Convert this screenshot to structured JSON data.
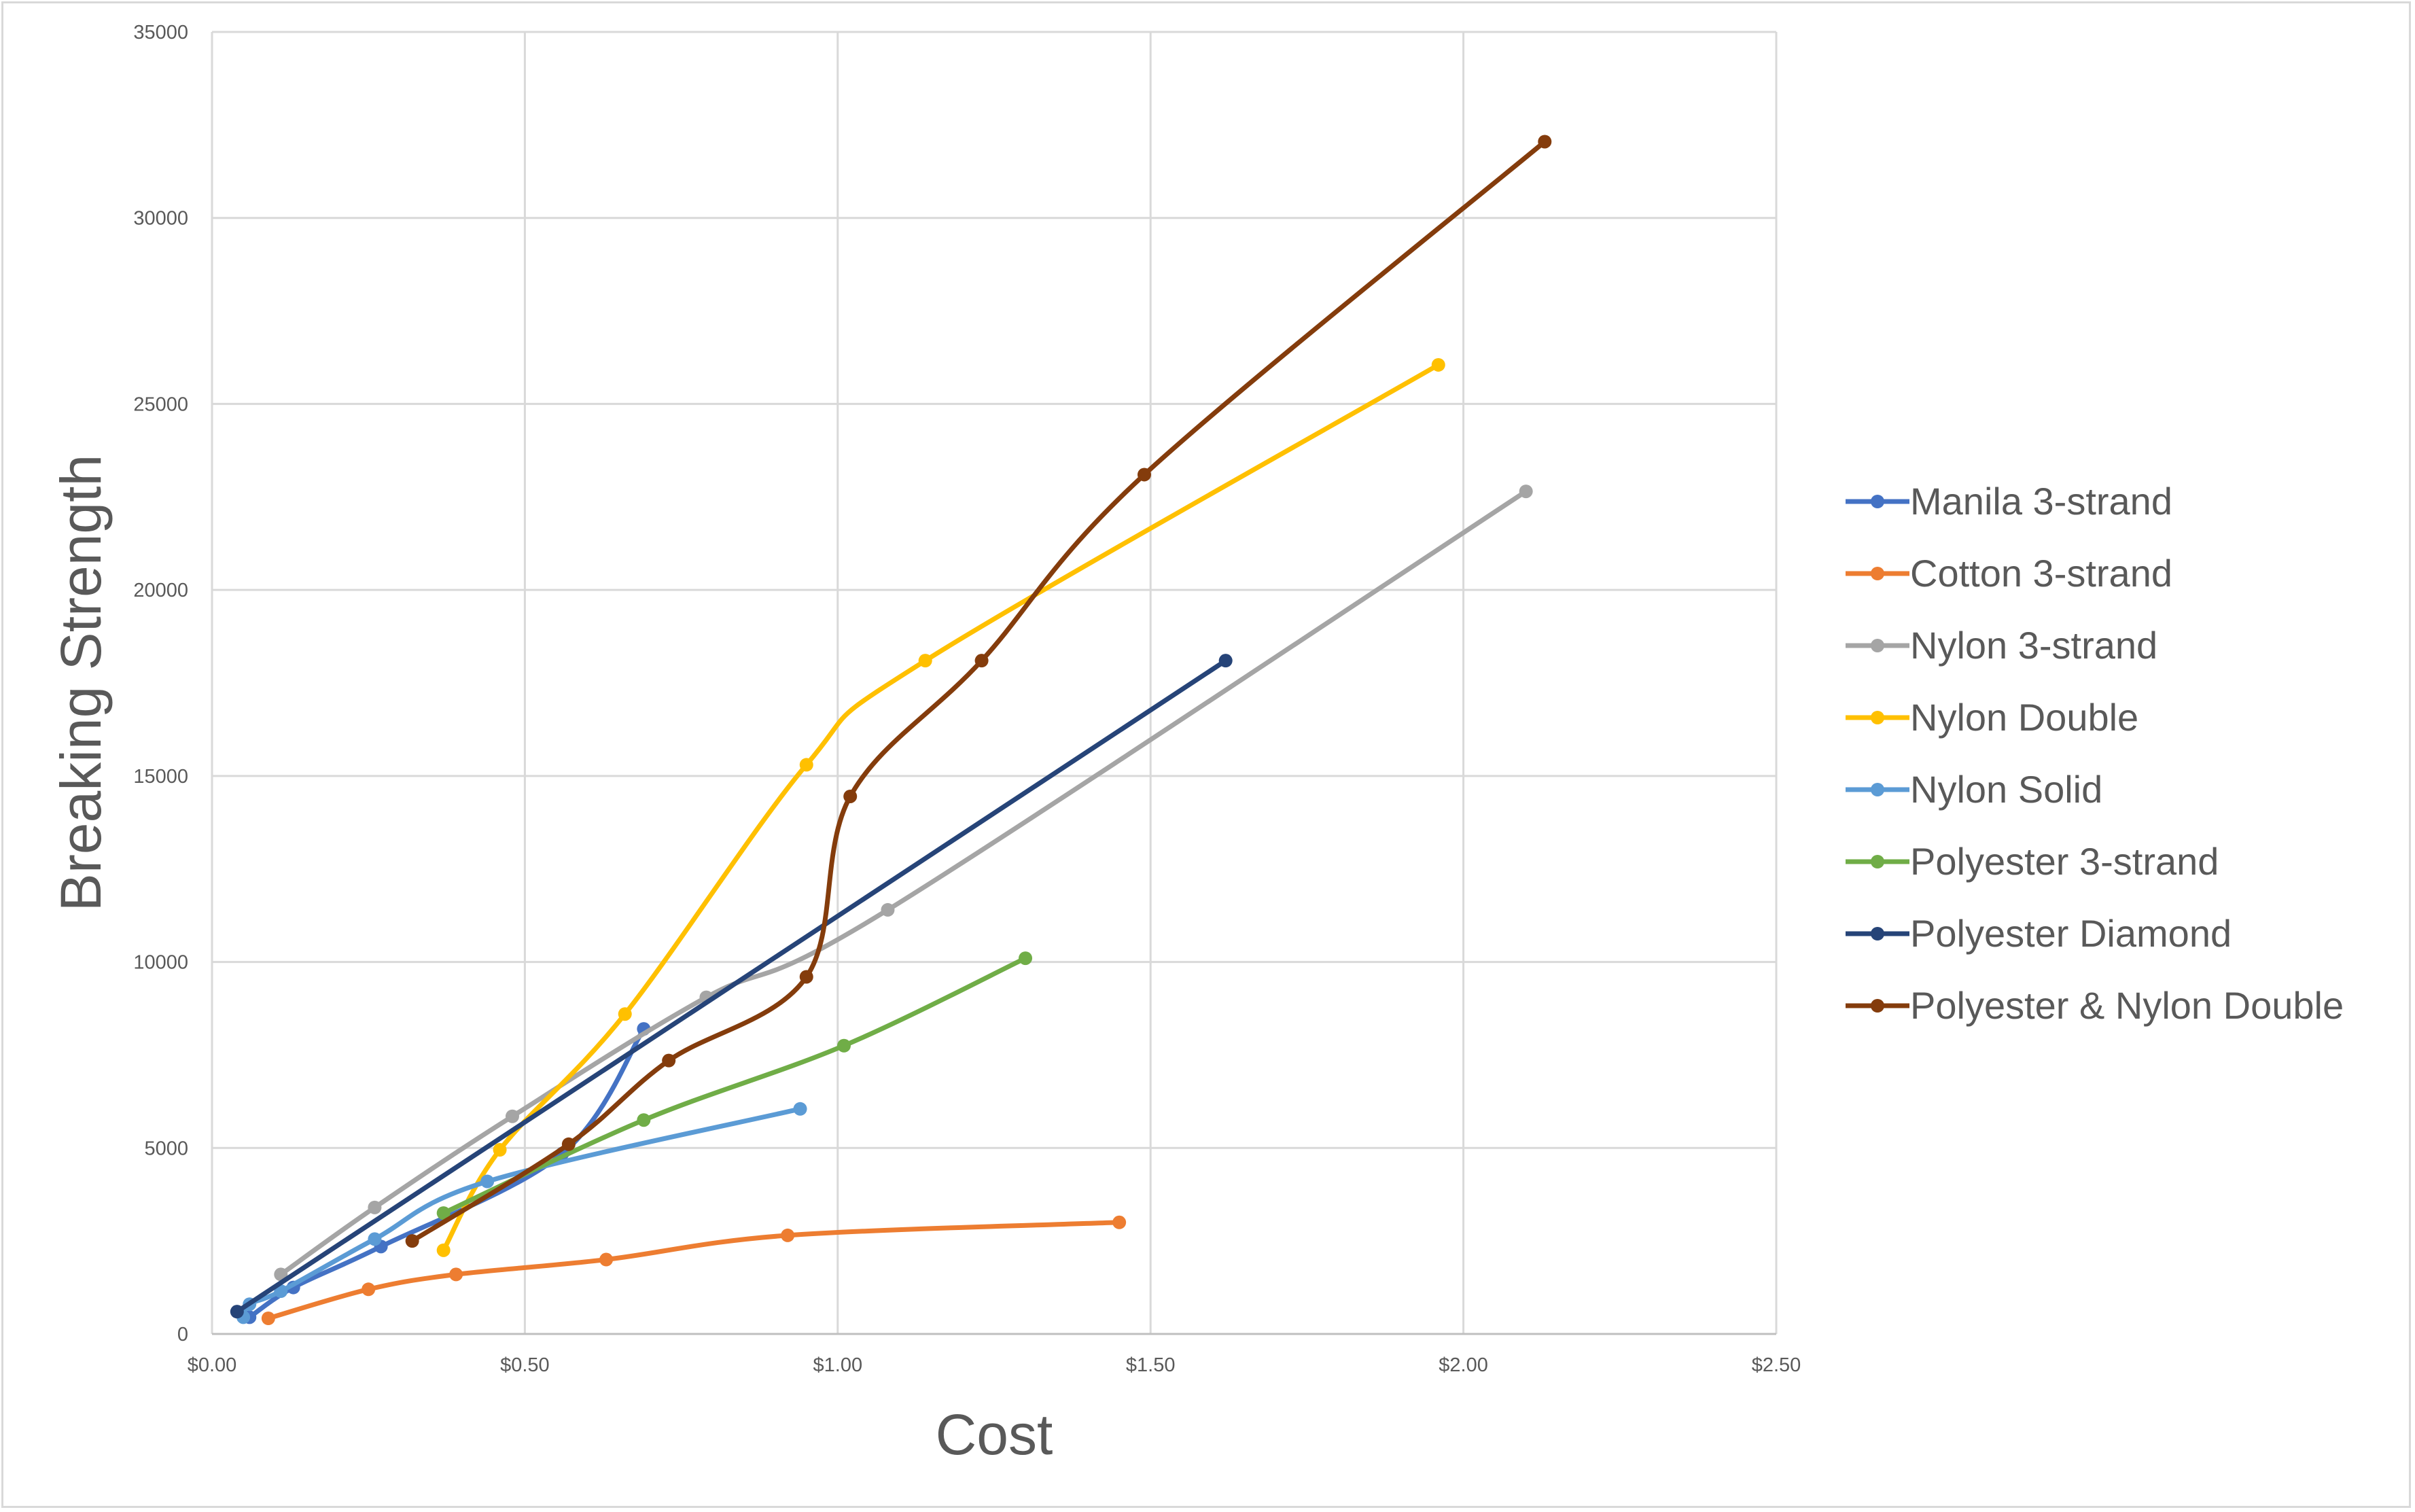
{
  "chart_data": {
    "type": "line",
    "title": "",
    "xlabel": "Cost",
    "ylabel": "Breaking Strength",
    "xlim": [
      0,
      2.5
    ],
    "ylim": [
      0,
      35000
    ],
    "x_ticks": [
      0,
      0.5,
      1.0,
      1.5,
      2.0,
      2.5
    ],
    "x_tick_labels": [
      "$0.00",
      "$0.50",
      "$1.00",
      "$1.50",
      "$2.00",
      "$2.50"
    ],
    "y_ticks": [
      0,
      5000,
      10000,
      15000,
      20000,
      25000,
      30000,
      35000
    ],
    "y_tick_labels": [
      "0",
      "5000",
      "10000",
      "15000",
      "20000",
      "25000",
      "30000",
      "35000"
    ],
    "grid": true,
    "smoothed": true,
    "legend_position": "right",
    "series": [
      {
        "name": "Manila 3-strand",
        "color": "#4472C4",
        "points": [
          [
            0.06,
            450
          ],
          [
            0.13,
            1250
          ],
          [
            0.27,
            2350
          ],
          [
            0.56,
            4850
          ],
          [
            0.69,
            8200
          ]
        ]
      },
      {
        "name": "Cotton 3-strand",
        "color": "#ED7D31",
        "points": [
          [
            0.09,
            420
          ],
          [
            0.25,
            1200
          ],
          [
            0.39,
            1600
          ],
          [
            0.63,
            2000
          ],
          [
            0.92,
            2650
          ],
          [
            1.45,
            3000
          ]
        ]
      },
      {
        "name": "Nylon 3-strand",
        "color": "#A5A5A5",
        "points": [
          [
            0.11,
            1600
          ],
          [
            0.26,
            3400
          ],
          [
            0.48,
            5850
          ],
          [
            0.79,
            9050
          ],
          [
            1.08,
            11400
          ],
          [
            2.1,
            22650
          ]
        ]
      },
      {
        "name": "Nylon Double",
        "color": "#FFC000",
        "points": [
          [
            0.37,
            2250
          ],
          [
            0.46,
            4950
          ],
          [
            0.66,
            8600
          ],
          [
            0.95,
            15300
          ],
          [
            1.14,
            18100
          ],
          [
            1.96,
            26050
          ]
        ]
      },
      {
        "name": "Nylon Solid",
        "color": "#5B9BD5",
        "points": [
          [
            0.05,
            450
          ],
          [
            0.06,
            800
          ],
          [
            0.11,
            1150
          ],
          [
            0.26,
            2550
          ],
          [
            0.44,
            4100
          ],
          [
            0.94,
            6050
          ]
        ]
      },
      {
        "name": "Polyester 3-strand",
        "color": "#70AD47",
        "points": [
          [
            0.37,
            3250
          ],
          [
            0.69,
            5750
          ],
          [
            1.01,
            7750
          ],
          [
            1.3,
            10100
          ]
        ]
      },
      {
        "name": "Polyester Diamond",
        "color": "#264478",
        "points": [
          [
            0.04,
            600
          ],
          [
            1.62,
            18100
          ]
        ]
      },
      {
        "name": "Polyester & Nylon Double",
        "color": "#843C0C",
        "points": [
          [
            0.32,
            2500
          ],
          [
            0.57,
            5100
          ],
          [
            0.73,
            7350
          ],
          [
            0.95,
            9600
          ],
          [
            1.02,
            14450
          ],
          [
            1.23,
            18100
          ],
          [
            1.49,
            23100
          ],
          [
            2.13,
            32050
          ]
        ]
      }
    ]
  }
}
